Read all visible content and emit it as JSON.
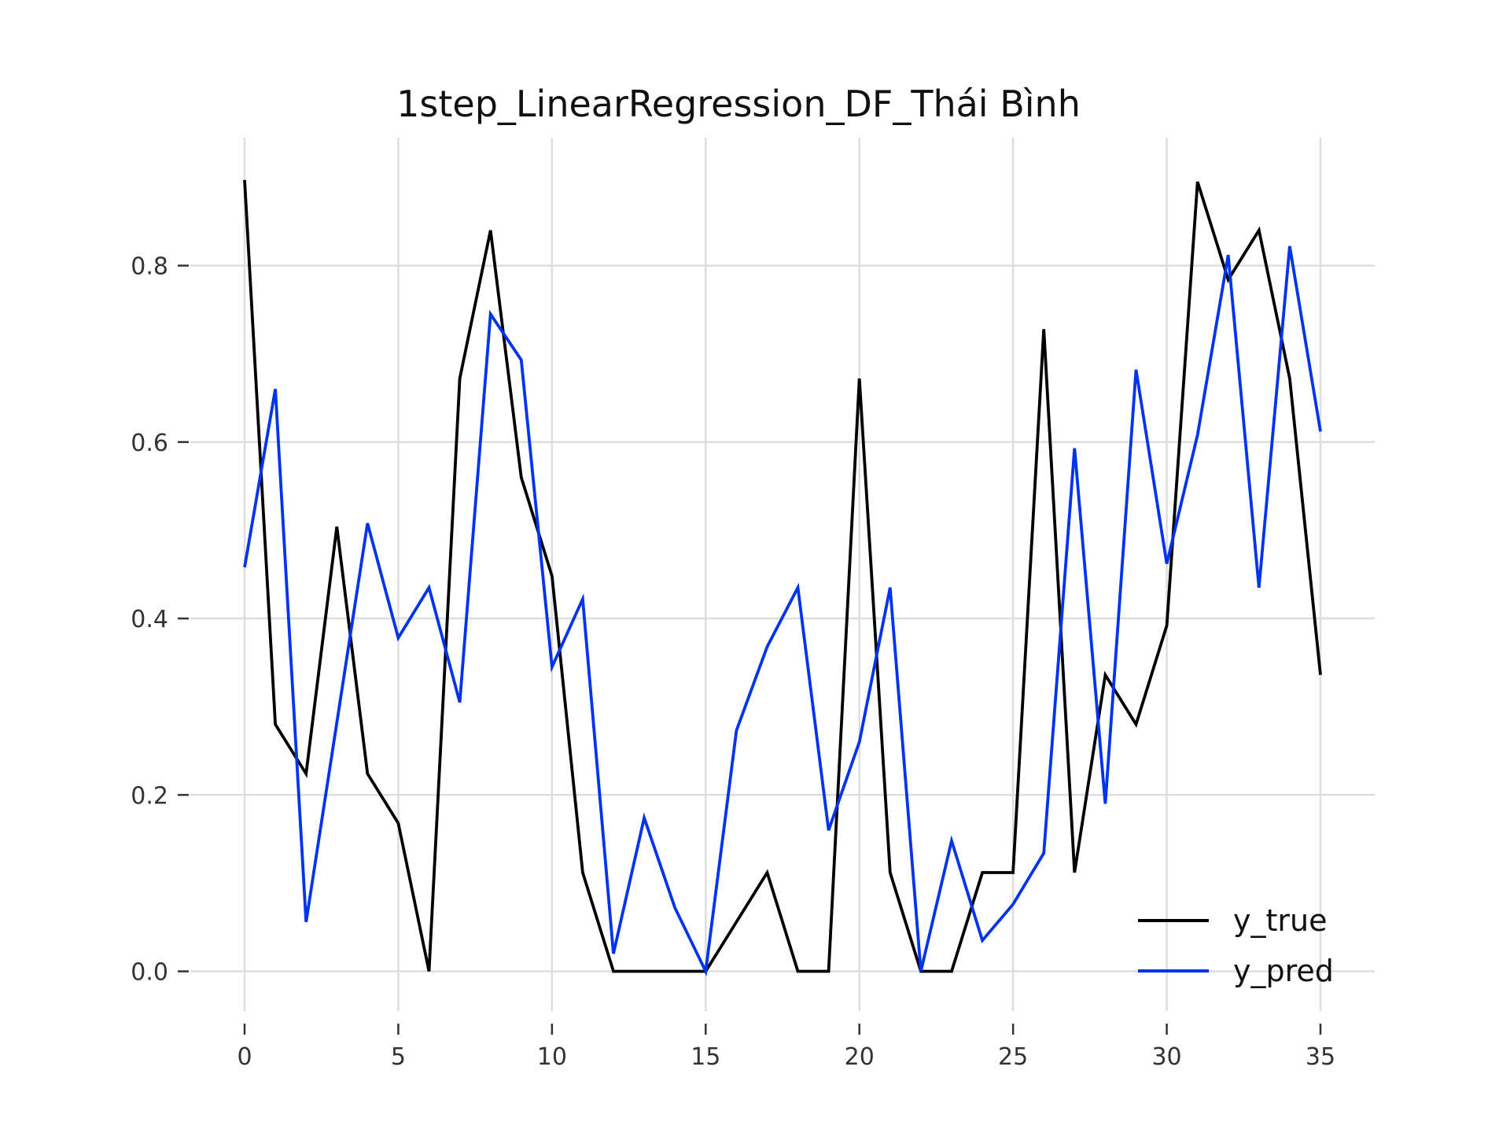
{
  "chart_data": {
    "type": "line",
    "title": "1step_LinearRegression_DF_Thái Bình",
    "xlabel": "",
    "ylabel": "",
    "xlim": [
      0,
      35
    ],
    "ylim": [
      -0.045,
      0.945
    ],
    "x_ticks": [
      0,
      5,
      10,
      15,
      20,
      25,
      30,
      35
    ],
    "x_tick_labels": [
      "0",
      "5",
      "10",
      "15",
      "20",
      "25",
      "30",
      "35"
    ],
    "y_ticks": [
      0.0,
      0.2,
      0.4,
      0.6,
      0.8
    ],
    "y_tick_labels": [
      "0.0",
      "0.2",
      "0.4",
      "0.6",
      "0.8"
    ],
    "grid": true,
    "legend_position": "lower-right",
    "x": [
      0,
      1,
      2,
      3,
      4,
      5,
      6,
      7,
      8,
      9,
      10,
      11,
      12,
      13,
      14,
      15,
      16,
      17,
      18,
      19,
      20,
      21,
      22,
      23,
      24,
      25,
      26,
      27,
      28,
      29,
      30,
      31,
      32,
      33,
      34,
      35
    ],
    "series": [
      {
        "name": "y_true",
        "color": "#000000",
        "values": [
          0.897,
          0.28,
          0.224,
          0.504,
          0.224,
          0.168,
          0.0,
          0.672,
          0.84,
          0.56,
          0.448,
          0.112,
          0.0,
          0.0,
          0.0,
          0.0,
          0.056,
          0.112,
          0.0,
          0.0,
          0.672,
          0.112,
          0.0,
          0.0,
          0.112,
          0.112,
          0.728,
          0.112,
          0.336,
          0.28,
          0.392,
          0.895,
          0.784,
          0.84,
          0.672,
          0.336
        ]
      },
      {
        "name": "y_pred",
        "color": "#0033ee",
        "values": [
          0.458,
          0.66,
          0.056,
          0.282,
          0.508,
          0.378,
          0.435,
          0.305,
          0.745,
          0.693,
          0.345,
          0.422,
          0.02,
          0.174,
          0.072,
          0.0,
          0.273,
          0.368,
          0.435,
          0.16,
          0.26,
          0.435,
          0.0,
          0.148,
          0.035,
          0.076,
          0.134,
          0.593,
          0.19,
          0.682,
          0.462,
          0.608,
          0.812,
          0.435,
          0.822,
          0.612
        ]
      }
    ]
  }
}
